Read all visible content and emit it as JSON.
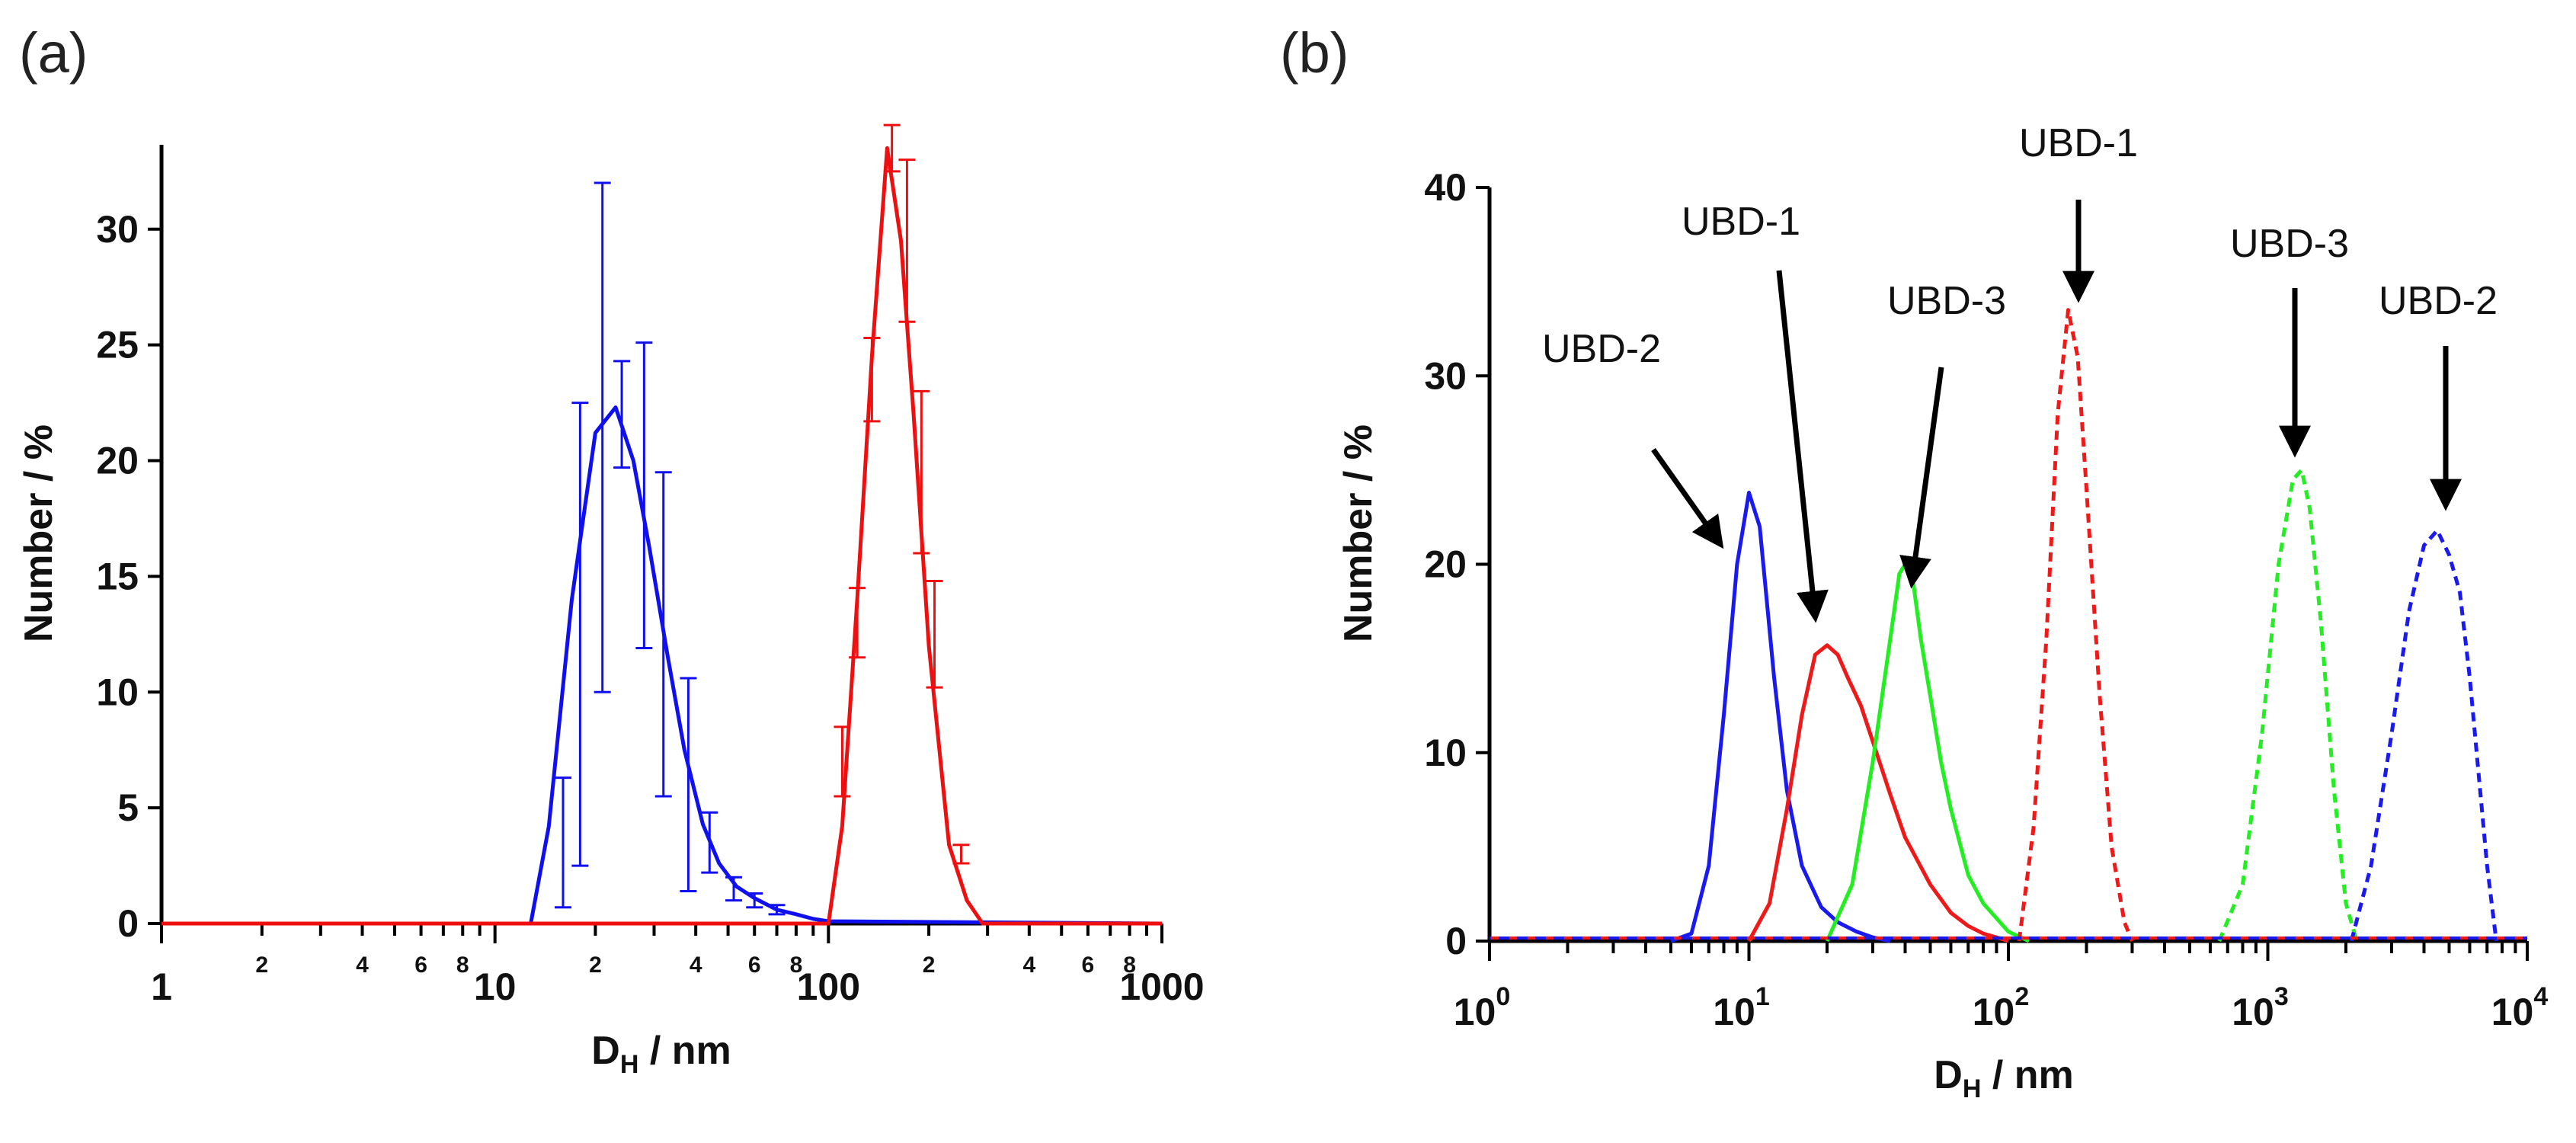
{
  "chart_data": [
    {
      "panel": "(a)",
      "type": "line",
      "xscale": "log",
      "xlim": [
        1,
        1000
      ],
      "ylim": [
        0,
        35
      ],
      "yticks": [
        "0",
        "5",
        "10",
        "15",
        "20",
        "25",
        "30"
      ],
      "xmajor_labels": [
        "1",
        "10",
        "100",
        "1000"
      ],
      "xminor_labels": [
        "2",
        "4",
        "6",
        "8"
      ],
      "xlabel": "D",
      "xlabel_sub": "H",
      "xlabel_unit": " / nm",
      "ylabel": "Number / %",
      "series": [
        {
          "name": "blue",
          "color": "#1010ee",
          "x": [
            1,
            12.8,
            14.5,
            17,
            20,
            23,
            26,
            29,
            33,
            37,
            42,
            47,
            53,
            60,
            70,
            80,
            90,
            100,
            1000
          ],
          "y": [
            0,
            0,
            4.2,
            14,
            21.2,
            22.3,
            20,
            16.3,
            11.5,
            7.5,
            4.3,
            2.6,
            1.6,
            1.1,
            0.6,
            0.4,
            0.2,
            0.1,
            0
          ],
          "errorbars": [
            {
              "x": 16,
              "y": 3.5,
              "err": 2.8
            },
            {
              "x": 18,
              "y": 12.5,
              "err": 10
            },
            {
              "x": 21,
              "y": 21,
              "err": 11
            },
            {
              "x": 24,
              "y": 22,
              "err": 2.3
            },
            {
              "x": 28,
              "y": 18.5,
              "err": 6.6
            },
            {
              "x": 32,
              "y": 12.5,
              "err": 7
            },
            {
              "x": 38,
              "y": 6,
              "err": 4.6
            },
            {
              "x": 44,
              "y": 3.5,
              "err": 1.3
            },
            {
              "x": 52,
              "y": 1.5,
              "err": 0.5
            },
            {
              "x": 60,
              "y": 1,
              "err": 0.3
            },
            {
              "x": 70,
              "y": 0.6,
              "err": 0.2
            }
          ]
        },
        {
          "name": "red",
          "color": "#ee1010",
          "x": [
            1,
            100,
            110,
            122,
            135,
            150,
            165,
            180,
            200,
            230,
            260,
            290,
            1000
          ],
          "y": [
            0,
            0,
            4.2,
            14,
            24.5,
            33.5,
            29.5,
            22,
            12,
            3.4,
            1,
            0,
            0
          ],
          "errorbars": [
            {
              "x": 110,
              "y": 7,
              "err": 1.5
            },
            {
              "x": 122,
              "y": 13,
              "err": 1.5
            },
            {
              "x": 135,
              "y": 23.5,
              "err": 1.8
            },
            {
              "x": 155,
              "y": 33.5,
              "err": 1
            },
            {
              "x": 172,
              "y": 29.5,
              "err": 3.5
            },
            {
              "x": 190,
              "y": 19.5,
              "err": 3.5
            },
            {
              "x": 208,
              "y": 12.5,
              "err": 2.3
            },
            {
              "x": 250,
              "y": 3,
              "err": 0.4
            }
          ]
        }
      ]
    },
    {
      "panel": "(b)",
      "type": "line",
      "xscale": "log",
      "xlim": [
        1,
        10000
      ],
      "ylim": [
        0,
        40
      ],
      "yticks": [
        "0",
        "10",
        "20",
        "30",
        "40"
      ],
      "xmajor_labels": [
        {
          "base": "10",
          "exp": "0"
        },
        {
          "base": "10",
          "exp": "1"
        },
        {
          "base": "10",
          "exp": "2"
        },
        {
          "base": "10",
          "exp": "3"
        },
        {
          "base": "10",
          "exp": "4"
        }
      ],
      "xlabel": "D",
      "xlabel_sub": "H",
      "xlabel_unit": " / nm",
      "ylabel": "Number / %",
      "series": [
        {
          "name": "UBD-2",
          "color": "#1a1aee",
          "dashed": false,
          "x": [
            5,
            6,
            7,
            8,
            9,
            10,
            11,
            12.5,
            14,
            16,
            19,
            22,
            26,
            30,
            35
          ],
          "y": [
            0,
            0.4,
            4,
            12,
            20,
            23.8,
            22,
            14,
            8,
            4,
            1.8,
            1,
            0.5,
            0.2,
            0
          ]
        },
        {
          "name": "UBD-1",
          "color": "#ee1a1a",
          "dashed": false,
          "x": [
            10,
            12,
            14,
            16,
            18,
            20,
            22,
            24,
            27,
            30,
            35,
            40,
            50,
            60,
            70,
            80,
            90,
            100
          ],
          "y": [
            0,
            2,
            7,
            12,
            15.2,
            15.7,
            15.2,
            14,
            12.5,
            10.6,
            7.8,
            5.5,
            3,
            1.5,
            0.8,
            0.4,
            0.2,
            0
          ]
        },
        {
          "name": "UBD-3",
          "color": "#22ee22",
          "dashed": false,
          "x": [
            20,
            25,
            30,
            35,
            38,
            40,
            43,
            46,
            50,
            55,
            60,
            70,
            80,
            100,
            120
          ],
          "y": [
            0,
            3,
            9.5,
            16,
            19.5,
            20,
            19,
            16,
            13,
            9.5,
            7,
            3.5,
            2,
            0.5,
            0
          ]
        },
        {
          "name": "UBD-1",
          "color": "#ee1a1a",
          "dashed": true,
          "x": [
            110,
            125,
            140,
            155,
            170,
            185,
            200,
            225,
            250,
            280,
            300
          ],
          "y": [
            0,
            6,
            16,
            28,
            33.5,
            31,
            24,
            13,
            5,
            1,
            0
          ]
        },
        {
          "name": "UBD-3",
          "color": "#22ee22",
          "dashed": true,
          "x": [
            650,
            800,
            950,
            1100,
            1250,
            1350,
            1450,
            1600,
            1800,
            2000,
            2200
          ],
          "y": [
            0,
            3,
            11,
            20,
            24.5,
            25,
            23,
            17,
            8,
            2,
            0
          ]
        },
        {
          "name": "UBD-2",
          "color": "#1a1aee",
          "dashed": true,
          "x": [
            2100,
            2500,
            3000,
            3500,
            4000,
            4500,
            5000,
            5500,
            6000,
            7000,
            7600
          ],
          "y": [
            0,
            4,
            11,
            17.5,
            21,
            21.8,
            20.5,
            18.5,
            14,
            4,
            0
          ]
        }
      ],
      "annotations": [
        {
          "text": "UBD-2",
          "x": 10,
          "y": 32
        },
        {
          "text": "UBD-1",
          "x": 16,
          "y": 36.5
        },
        {
          "text": "UBD-3",
          "x": 40,
          "y": 33.5
        },
        {
          "text": "UBD-1",
          "x": 170,
          "y": 41
        },
        {
          "text": "UBD-3",
          "x": 1300,
          "y": 36
        },
        {
          "text": "UBD-2",
          "x": 4500,
          "y": 33.5
        }
      ]
    }
  ]
}
